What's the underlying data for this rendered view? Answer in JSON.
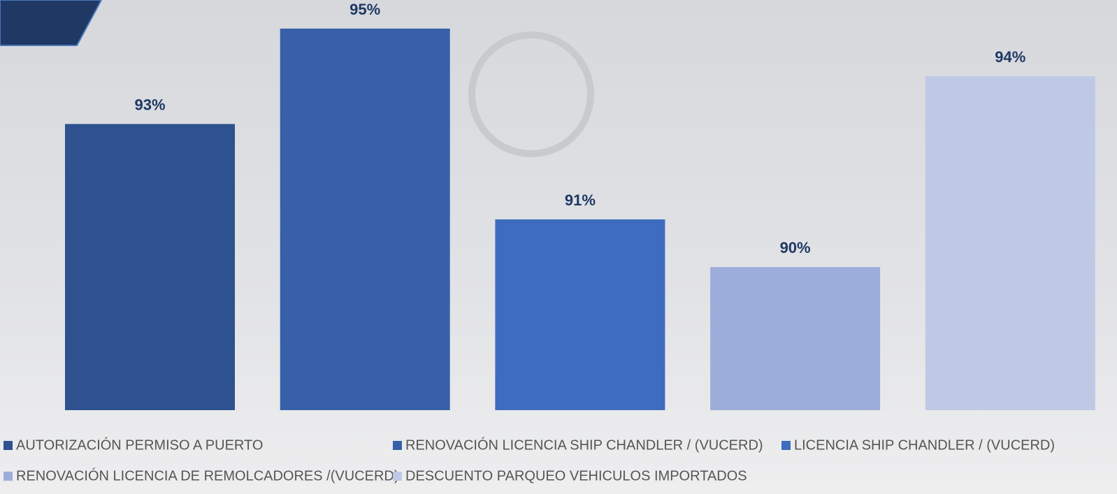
{
  "chart_data": {
    "type": "bar",
    "series": [
      {
        "name": "AUTORIZACIÓN PERMISO A PUERTO",
        "color": "#2e5190",
        "values": [
          93
        ],
        "value_labels": [
          "93%"
        ]
      },
      {
        "name": "RENOVACIÓN LICENCIA SHIP CHANDLER / (VUCERD)",
        "color": "#3860a8",
        "values": [
          95
        ],
        "value_labels": [
          "95%"
        ]
      },
      {
        "name": "LICENCIA SHIP CHANDLER / (VUCERD)",
        "color": "#3e6cbf",
        "values": [
          91
        ],
        "value_labels": [
          "91%"
        ]
      },
      {
        "name": "RENOVACIÓN LICENCIA DE REMOLCADORES /(VUCERD)",
        "color": "#9dadd9",
        "values": [
          90
        ],
        "value_labels": [
          "90%"
        ]
      },
      {
        "name": "DESCUENTO PARQUEO VEHICULOS IMPORTADOS",
        "color": "#bfc9e6",
        "values": [
          94
        ],
        "value_labels": [
          "94%"
        ]
      }
    ],
    "ylim": [
      87,
      95.6
    ]
  }
}
